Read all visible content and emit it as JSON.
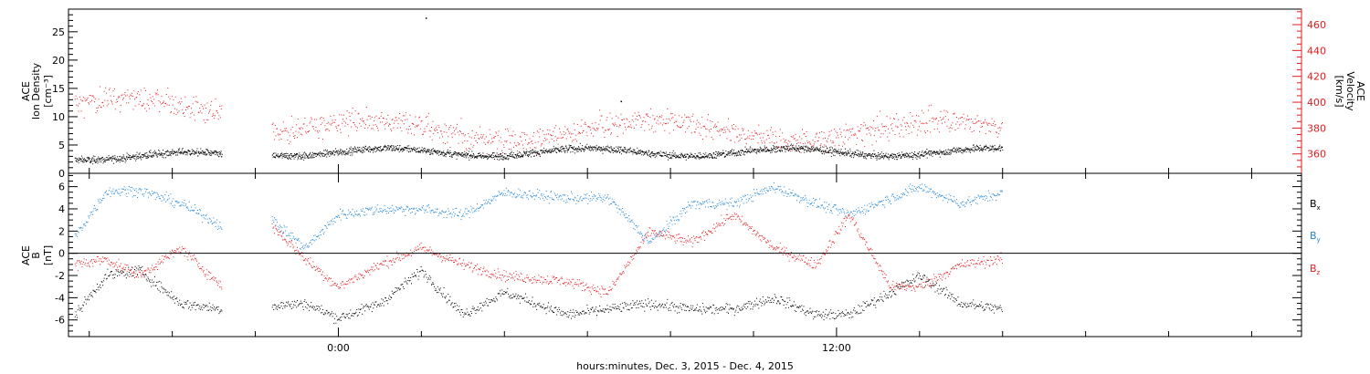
{
  "chart_data": [
    {
      "type": "scatter",
      "panel": "plasma",
      "ylabel_left": [
        "ACE",
        "Ion Density",
        "[cm⁻³]"
      ],
      "ylabel_right": [
        "ACE",
        "Velocity",
        "[km/s]"
      ],
      "ylim_left": [
        0,
        29
      ],
      "yticks_left": [
        0,
        5,
        10,
        15,
        20,
        25
      ],
      "ylim_right": [
        345,
        472
      ],
      "yticks_right": [
        360,
        380,
        400,
        420,
        440,
        460
      ],
      "colors": {
        "density": "#000000",
        "velocity": "#e41a1c"
      },
      "segments": [
        {
          "t0": -6.35,
          "t1": -2.8,
          "density_mean": 3.1,
          "velocity_mean": 395
        },
        {
          "t0": -1.6,
          "t1": 16.0,
          "density_mean": 3.8,
          "velocity_mean": 378
        }
      ],
      "outliers": [
        {
          "series": "density",
          "t": 2.1,
          "value": 27.5
        },
        {
          "series": "density",
          "t": 6.8,
          "value": 12.8
        }
      ]
    },
    {
      "type": "scatter",
      "panel": "magnetic_field",
      "ylabel_left": [
        "ACE",
        "B",
        "[nT]"
      ],
      "ylim": [
        -7.5,
        7.2
      ],
      "yticks": [
        -6,
        -4,
        -2,
        0,
        2,
        4,
        6
      ],
      "zero_line": true,
      "series": [
        {
          "name": "Bx",
          "label_main": "B",
          "label_sub": "x",
          "color": "#000000"
        },
        {
          "name": "By",
          "label_main": "B",
          "label_sub": "y",
          "color": "#1f86d6"
        },
        {
          "name": "Bz",
          "label_main": "B",
          "label_sub": "z",
          "color": "#e41a1c"
        }
      ],
      "trend": [
        {
          "t": -6.35,
          "Bx": -5.5,
          "By": 1.5,
          "Bz": -1.0
        },
        {
          "t": -5.6,
          "Bx": -2.0,
          "By": 5.6,
          "Bz": -0.5
        },
        {
          "t": -4.8,
          "Bx": -1.5,
          "By": 5.7,
          "Bz": -2.0
        },
        {
          "t": -3.8,
          "Bx": -4.5,
          "By": 4.5,
          "Bz": 0.5
        },
        {
          "t": -2.8,
          "Bx": -5.0,
          "By": 2.5,
          "Bz": -3.0
        },
        {
          "t": -1.6,
          "Bx": -4.7,
          "By": 3.0,
          "Bz": 2.5
        },
        {
          "t": -0.8,
          "Bx": -4.5,
          "By": 0.5,
          "Bz": -0.5
        },
        {
          "t": 0.0,
          "Bx": -5.8,
          "By": 3.5,
          "Bz": -3.0
        },
        {
          "t": 1.0,
          "Bx": -4.5,
          "By": 4.0,
          "Bz": -1.0
        },
        {
          "t": 2.0,
          "Bx": -1.5,
          "By": 4.0,
          "Bz": 0.5
        },
        {
          "t": 3.0,
          "Bx": -5.5,
          "By": 3.5,
          "Bz": -1.0
        },
        {
          "t": 4.0,
          "Bx": -3.5,
          "By": 5.5,
          "Bz": -2.0
        },
        {
          "t": 5.5,
          "Bx": -5.5,
          "By": 5.0,
          "Bz": -2.5
        },
        {
          "t": 6.5,
          "Bx": -5.0,
          "By": 5.0,
          "Bz": -3.5
        },
        {
          "t": 7.5,
          "Bx": -4.5,
          "By": 1.0,
          "Bz": 2.0
        },
        {
          "t": 8.5,
          "Bx": -5.0,
          "By": 4.5,
          "Bz": 1.0
        },
        {
          "t": 9.5,
          "Bx": -5.0,
          "By": 4.5,
          "Bz": 3.5
        },
        {
          "t": 10.5,
          "Bx": -4.0,
          "By": 6.0,
          "Bz": 0.5
        },
        {
          "t": 11.5,
          "Bx": -5.5,
          "By": 4.5,
          "Bz": -1.0
        },
        {
          "t": 12.3,
          "Bx": -5.5,
          "By": 3.5,
          "Bz": 3.5
        },
        {
          "t": 13.3,
          "Bx": -3.5,
          "By": 5.0,
          "Bz": -3.0
        },
        {
          "t": 14.0,
          "Bx": -2.0,
          "By": 6.0,
          "Bz": -3.0
        },
        {
          "t": 15.0,
          "Bx": -4.5,
          "By": 4.5,
          "Bz": -1.0
        },
        {
          "t": 16.0,
          "Bx": -5.0,
          "By": 5.5,
          "Bz": -0.5
        }
      ],
      "gap": [
        -2.8,
        -1.6
      ]
    }
  ],
  "xaxis": {
    "label": "hours:minutes, Dec.  3, 2015 - Dec.  4, 2015",
    "range_hours": [
      -6.5,
      23.2
    ],
    "major_ticks": [
      {
        "t": 0,
        "label": "0:00"
      },
      {
        "t": 12,
        "label": "12:00"
      }
    ],
    "minor_tick_step_hours": 2
  }
}
